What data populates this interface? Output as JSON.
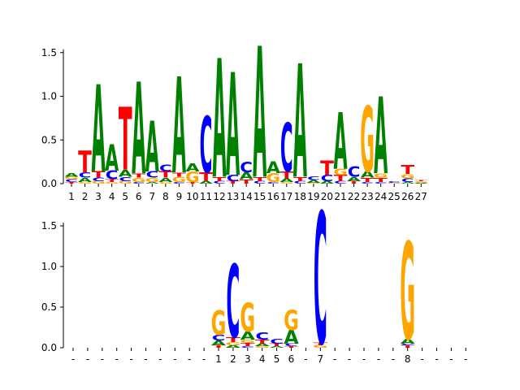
{
  "chart_data": [
    {
      "type": "sequence-logo",
      "title": "",
      "xlabel": "",
      "ylabel": "",
      "ylim": [
        0,
        1.6
      ],
      "y_ticks": [
        "0.0",
        "0.5",
        "1.0",
        "1.5"
      ],
      "y_tick_values": [
        0,
        0.5,
        1.0,
        1.5
      ],
      "x_labels": [
        "1",
        "2",
        "3",
        "4",
        "5",
        "6",
        "7",
        "8",
        "9",
        "10",
        "11",
        "12",
        "13",
        "14",
        "15",
        "16",
        "17",
        "18",
        "19",
        "20",
        "21",
        "22",
        "23",
        "24",
        "25",
        "26",
        "27"
      ],
      "colors": {
        "A": "#008000",
        "C": "#0000ff",
        "G": "#ffa500",
        "T": "#ff0000"
      },
      "positions": [
        [
          [
            "T",
            0.02
          ],
          [
            "C",
            0.03
          ],
          [
            "G",
            0.03
          ],
          [
            "A",
            0.04
          ]
        ],
        [
          [
            "G",
            0.02
          ],
          [
            "A",
            0.05
          ],
          [
            "C",
            0.06
          ],
          [
            "T",
            0.25
          ]
        ],
        [
          [
            "G",
            0.03
          ],
          [
            "C",
            0.04
          ],
          [
            "T",
            0.07
          ],
          [
            "A",
            1.0
          ]
        ],
        [
          [
            "G",
            0.02
          ],
          [
            "T",
            0.03
          ],
          [
            "C",
            0.1
          ],
          [
            "A",
            0.3
          ]
        ],
        [
          [
            "G",
            0.03
          ],
          [
            "C",
            0.05
          ],
          [
            "A",
            0.08
          ],
          [
            "T",
            0.72
          ]
        ],
        [
          [
            "C",
            0.02
          ],
          [
            "G",
            0.05
          ],
          [
            "T",
            0.05
          ],
          [
            "A",
            1.05
          ]
        ],
        [
          [
            "A",
            0.02
          ],
          [
            "G",
            0.05
          ],
          [
            "C",
            0.07
          ],
          [
            "A",
            0.58
          ]
        ],
        [
          [
            "G",
            0.02
          ],
          [
            "A",
            0.05
          ],
          [
            "T",
            0.07
          ],
          [
            "C",
            0.08
          ]
        ],
        [
          [
            "C",
            0.02
          ],
          [
            "G",
            0.06
          ],
          [
            "T",
            0.05
          ],
          [
            "A",
            1.1
          ]
        ],
        [
          [
            "T",
            0.02
          ],
          [
            "G",
            0.12
          ],
          [
            "A",
            0.09
          ]
        ],
        [
          [
            "A",
            0.03
          ],
          [
            "T",
            0.1
          ],
          [
            "C",
            0.65
          ]
        ],
        [
          [
            "C",
            0.03
          ],
          [
            "T",
            0.05
          ],
          [
            "A",
            1.36
          ]
        ],
        [
          [
            "T",
            0.03
          ],
          [
            "C",
            0.07
          ],
          [
            "A",
            1.18
          ]
        ],
        [
          [
            "T",
            0.05
          ],
          [
            "A",
            0.08
          ],
          [
            "C",
            0.12
          ]
        ],
        [
          [
            "C",
            0.03
          ],
          [
            "T",
            0.05
          ],
          [
            "A",
            1.5
          ]
        ],
        [
          [
            "C",
            0.02
          ],
          [
            "G",
            0.1
          ],
          [
            "A",
            0.13
          ]
        ],
        [
          [
            "G",
            0.02
          ],
          [
            "A",
            0.04
          ],
          [
            "T",
            0.08
          ],
          [
            "C",
            0.56
          ]
        ],
        [
          [
            "C",
            0.03
          ],
          [
            "T",
            0.05
          ],
          [
            "A",
            1.3
          ]
        ],
        [
          [
            "G",
            0.01
          ],
          [
            "A",
            0.03
          ],
          [
            "C",
            0.04
          ]
        ],
        [
          [
            "A",
            0.03
          ],
          [
            "C",
            0.07
          ],
          [
            "T",
            0.17
          ]
        ],
        [
          [
            "C",
            0.03
          ],
          [
            "T",
            0.07
          ],
          [
            "G",
            0.07
          ],
          [
            "A",
            0.65
          ]
        ],
        [
          [
            "T",
            0.03
          ],
          [
            "A",
            0.05
          ],
          [
            "C",
            0.12
          ]
        ],
        [
          [
            "C",
            0.02
          ],
          [
            "T",
            0.05
          ],
          [
            "A",
            0.07
          ],
          [
            "G",
            0.75
          ]
        ],
        [
          [
            "C",
            0.02
          ],
          [
            "T",
            0.05
          ],
          [
            "G",
            0.05
          ],
          [
            "A",
            0.88
          ]
        ],
        [
          [
            "G",
            0.01
          ],
          [
            "C",
            0.02
          ]
        ],
        [
          [
            "A",
            0.02
          ],
          [
            "C",
            0.04
          ],
          [
            "G",
            0.05
          ],
          [
            "T",
            0.1
          ]
        ],
        [
          [
            "A",
            0.01
          ],
          [
            "G",
            0.02
          ],
          [
            "T",
            0.01
          ]
        ]
      ]
    },
    {
      "type": "sequence-logo",
      "title": "",
      "xlabel": "",
      "ylabel": "",
      "ylim": [
        0,
        1.72
      ],
      "y_ticks": [
        "0.0",
        "0.5",
        "1.0",
        "1.5"
      ],
      "y_tick_values": [
        0,
        0.5,
        1.0,
        1.5
      ],
      "x_labels": [
        "-",
        "-",
        "-",
        "-",
        "-",
        "-",
        "-",
        "-",
        "-",
        "-",
        "1",
        "2",
        "3",
        "4",
        "5",
        "6",
        "-",
        "7",
        "-",
        "-",
        "-",
        "-",
        "-",
        "8",
        "-",
        "-",
        "-",
        "-"
      ],
      "colors": {
        "A": "#008000",
        "C": "#0000ff",
        "G": "#ffa500",
        "T": "#ff0000"
      },
      "positions": [
        [],
        [],
        [],
        [],
        [],
        [],
        [],
        [],
        [],
        [],
        [
          [
            "T",
            0.03
          ],
          [
            "A",
            0.06
          ],
          [
            "C",
            0.07
          ],
          [
            "G",
            0.3
          ]
        ],
        [
          [
            "A",
            0.03
          ],
          [
            "G",
            0.04
          ],
          [
            "T",
            0.06
          ],
          [
            "C",
            0.9
          ]
        ],
        [
          [
            "C",
            0.02
          ],
          [
            "T",
            0.04
          ],
          [
            "G",
            0.04
          ],
          [
            "A",
            0.1
          ],
          [
            "G",
            0.35
          ]
        ],
        [
          [
            "G",
            0.02
          ],
          [
            "A",
            0.03
          ],
          [
            "T",
            0.05
          ],
          [
            "C",
            0.09
          ]
        ],
        [
          [
            "A",
            0.02
          ],
          [
            "T",
            0.03
          ],
          [
            "C",
            0.06
          ]
        ],
        [
          [
            "T",
            0.02
          ],
          [
            "C",
            0.03
          ],
          [
            "A",
            0.17
          ],
          [
            "G",
            0.25
          ]
        ],
        [],
        [
          [
            "G",
            0.03
          ],
          [
            "T",
            0.03
          ],
          [
            "C",
            1.62
          ]
        ],
        [],
        [],
        [],
        [],
        [],
        [
          [
            "T",
            0.03
          ],
          [
            "C",
            0.02
          ],
          [
            "A",
            0.06
          ],
          [
            "G",
            1.2
          ]
        ],
        [],
        [],
        [],
        []
      ]
    }
  ]
}
